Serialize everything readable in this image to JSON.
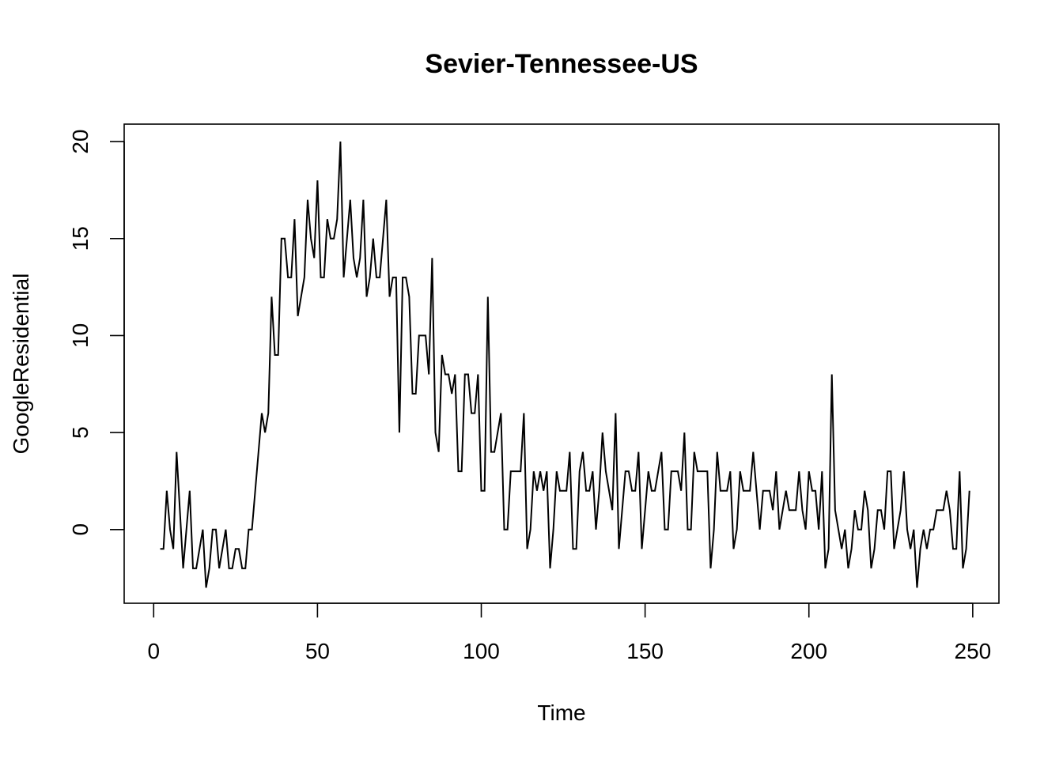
{
  "chart_data": {
    "type": "line",
    "title": "Sevier-Tennessee-US",
    "xlabel": "Time",
    "ylabel": "GoogleResidential",
    "xlim": [
      -9,
      258
    ],
    "ylim": [
      -3.8,
      20.9
    ],
    "x_ticks": [
      0,
      50,
      100,
      150,
      200,
      250
    ],
    "y_ticks": [
      0,
      5,
      10,
      15,
      20
    ],
    "x_tick_labels": [
      "0",
      "50",
      "100",
      "150",
      "200",
      "250"
    ],
    "y_tick_labels": [
      "0",
      "5",
      "10",
      "15",
      "20"
    ],
    "grid": false,
    "legend": "none",
    "line_color": "#000000",
    "series": [
      {
        "x_start": 2,
        "values": [
          -1,
          -1,
          2,
          0,
          -1,
          4,
          1,
          -2,
          0,
          2,
          -2,
          -2,
          -1,
          0,
          -3,
          -2,
          0,
          0,
          -2,
          -1,
          0,
          -2,
          -2,
          -1,
          -1,
          -2,
          -2,
          0,
          0,
          2,
          4,
          6,
          5,
          6,
          12,
          9,
          9,
          15,
          15,
          13,
          13,
          16,
          11,
          12,
          13,
          17,
          15,
          14,
          18,
          13,
          13,
          16,
          15,
          15,
          16,
          20,
          13,
          15,
          17,
          14,
          13,
          14,
          17,
          12,
          13,
          15,
          13,
          13,
          15,
          17,
          12,
          13,
          13,
          5,
          13,
          13,
          12,
          7,
          7,
          10,
          10,
          10,
          8,
          14,
          5,
          4,
          9,
          8,
          8,
          7,
          8,
          3,
          3,
          8,
          8,
          6,
          6,
          8,
          2,
          2,
          12,
          4,
          4,
          5,
          6,
          0,
          0,
          3,
          3,
          3,
          3,
          6,
          -1,
          0,
          3,
          2,
          3,
          2,
          3,
          -2,
          0,
          3,
          2,
          2,
          2,
          4,
          -1,
          -1,
          3,
          4,
          2,
          2,
          3,
          0,
          2,
          5,
          3,
          2,
          1,
          6,
          -1,
          1,
          3,
          3,
          2,
          2,
          4,
          -1,
          1,
          3,
          2,
          2,
          3,
          4,
          0,
          0,
          3,
          3,
          3,
          2,
          5,
          0,
          0,
          4,
          3,
          3,
          3,
          3,
          -2,
          0,
          4,
          2,
          2,
          2,
          3,
          -1,
          0,
          3,
          2,
          2,
          2,
          4,
          2,
          0,
          2,
          2,
          2,
          1,
          3,
          0,
          1,
          2,
          1,
          1,
          1,
          3,
          1,
          0,
          3,
          2,
          2,
          0,
          3,
          -2,
          -1,
          8,
          1,
          0,
          -1,
          0,
          -2,
          -1,
          1,
          0,
          0,
          2,
          1,
          -2,
          -1,
          1,
          1,
          0,
          3,
          3,
          -1,
          0,
          1,
          3,
          0,
          -1,
          0,
          -3,
          -1,
          0,
          -1,
          0,
          0,
          1,
          1,
          1,
          2,
          1,
          -1,
          -1,
          3,
          -2,
          -1,
          2
        ]
      }
    ]
  }
}
